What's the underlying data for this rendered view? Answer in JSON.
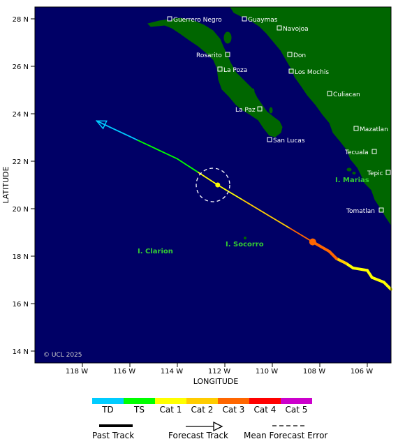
{
  "axes": {
    "ylabel": "LATITUDE",
    "xlabel": "LONGITUDE",
    "lat_ticks": [
      "28 N",
      "26 N",
      "24 N",
      "22 N",
      "20 N",
      "18 N",
      "16 N",
      "14 N"
    ],
    "lon_ticks": [
      "118 W",
      "116 W",
      "114 W",
      "112 W",
      "110 W",
      "108 W",
      "106 W"
    ],
    "lat_range": [
      13.5,
      28.5
    ],
    "lon_range": [
      -120,
      -105
    ]
  },
  "colors": {
    "ocean": "#000066",
    "land": "#006600",
    "TD": "#00ccff",
    "TS": "#00ff00",
    "Cat1": "#ffff00",
    "Cat2": "#ffcc00",
    "Cat3": "#ff6600",
    "Cat4": "#ff0000",
    "Cat5": "#cc00cc"
  },
  "cities": [
    {
      "name": "Guerrero Negro"
    },
    {
      "name": "Guaymas"
    },
    {
      "name": "Navojoa"
    },
    {
      "name": "Rosarito"
    },
    {
      "name": "Don"
    },
    {
      "name": "La Poza"
    },
    {
      "name": "Los Mochis"
    },
    {
      "name": "Culiacan"
    },
    {
      "name": "La Paz"
    },
    {
      "name": "Mazatlan"
    },
    {
      "name": "San Lucas"
    },
    {
      "name": "Tecuala"
    },
    {
      "name": "Tepic"
    },
    {
      "name": "Tomatlan"
    }
  ],
  "islands": [
    {
      "name": "I. Marias"
    },
    {
      "name": "I. Socorro"
    },
    {
      "name": "I. Clarion"
    }
  ],
  "copyright": "© UCL 2025",
  "storm": {
    "past_track": [
      {
        "lon": -105.0,
        "lat": 16.6,
        "cat": "Cat1"
      },
      {
        "lon": -105.3,
        "lat": 16.9,
        "cat": "Cat1"
      },
      {
        "lon": -105.8,
        "lat": 17.1,
        "cat": "Cat1"
      },
      {
        "lon": -106.0,
        "lat": 17.4,
        "cat": "Cat1"
      },
      {
        "lon": -106.6,
        "lat": 17.5,
        "cat": "Cat1"
      },
      {
        "lon": -106.9,
        "lat": 17.7,
        "cat": "Cat1"
      },
      {
        "lon": -107.3,
        "lat": 17.9,
        "cat": "Cat2"
      },
      {
        "lon": -107.6,
        "lat": 18.2,
        "cat": "Cat3"
      },
      {
        "lon": -108.3,
        "lat": 18.6,
        "cat": "Cat3"
      }
    ],
    "forecast_track": [
      {
        "lon": -108.3,
        "lat": 18.6,
        "cat": "Cat3"
      },
      {
        "lon": -112.3,
        "lat": 21.0,
        "cat": "Cat1"
      },
      {
        "lon": -114.0,
        "lat": 22.1,
        "cat": "TS"
      },
      {
        "lon": -117.4,
        "lat": 23.7,
        "cat": "TD"
      }
    ]
  },
  "legend": {
    "categories": [
      {
        "label": "TD",
        "key": "TD"
      },
      {
        "label": "TS",
        "key": "TS"
      },
      {
        "label": "Cat 1",
        "key": "Cat1"
      },
      {
        "label": "Cat 2",
        "key": "Cat2"
      },
      {
        "label": "Cat 3",
        "key": "Cat3"
      },
      {
        "label": "Cat 4",
        "key": "Cat4"
      },
      {
        "label": "Cat 5",
        "key": "Cat5"
      }
    ],
    "past_track_label": "Past Track",
    "forecast_track_label": "Forecast Track",
    "error_label": "Mean Forecast Error"
  }
}
